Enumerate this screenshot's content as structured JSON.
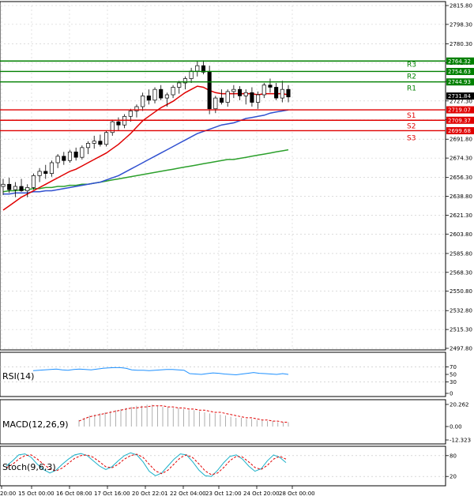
{
  "chart_data": {
    "type": "candlestick",
    "price_axis": {
      "ylim": [
        2497.8,
        2815.8
      ],
      "ticks": [
        "2815.80",
        "2798.30",
        "2780.30",
        "2762.80",
        "2745.30",
        "2727.30",
        "2709.80",
        "2691.80",
        "2674.30",
        "2656.30",
        "2638.80",
        "2621.30",
        "2603.80",
        "2585.80",
        "2568.30",
        "2550.80",
        "2532.80",
        "2515.30",
        "2497.80"
      ]
    },
    "x_labels": [
      "20:00",
      "15 Oct 00:00",
      "16 Oct 08:00",
      "17 Oct 16:00",
      "20 Oct 22:01",
      "22 Oct 04:00",
      "23 Oct 12:00",
      "24 Oct 20:00",
      "28 Oct 00:00"
    ],
    "pivot_levels": [
      {
        "name": "R3",
        "value": "2764.32",
        "color": "#008000"
      },
      {
        "name": "R2",
        "value": "2754.63",
        "color": "#008000"
      },
      {
        "name": "R1",
        "value": "2744.93",
        "color": "#008000"
      },
      {
        "name": "S1",
        "value": "2719.07",
        "color": "#e00000"
      },
      {
        "name": "S2",
        "value": "2709.37",
        "color": "#e00000"
      },
      {
        "name": "S3",
        "value": "2699.68",
        "color": "#e00000"
      }
    ],
    "current_price": "2731.84",
    "candles": [
      [
        2648,
        2655,
        2640,
        2650
      ],
      [
        2650,
        2656,
        2642,
        2645
      ],
      [
        2645,
        2652,
        2638,
        2648
      ],
      [
        2648,
        2655,
        2643,
        2644
      ],
      [
        2644,
        2650,
        2638,
        2647
      ],
      [
        2647,
        2660,
        2645,
        2658
      ],
      [
        2658,
        2665,
        2652,
        2662
      ],
      [
        2662,
        2668,
        2655,
        2660
      ],
      [
        2660,
        2672,
        2657,
        2670
      ],
      [
        2670,
        2678,
        2665,
        2676
      ],
      [
        2676,
        2680,
        2668,
        2672
      ],
      [
        2672,
        2682,
        2670,
        2680
      ],
      [
        2680,
        2684,
        2672,
        2675
      ],
      [
        2675,
        2686,
        2673,
        2684
      ],
      [
        2684,
        2690,
        2678,
        2688
      ],
      [
        2688,
        2695,
        2683,
        2690
      ],
      [
        2690,
        2696,
        2685,
        2687
      ],
      [
        2687,
        2700,
        2685,
        2698
      ],
      [
        2698,
        2710,
        2695,
        2708
      ],
      [
        2708,
        2712,
        2700,
        2705
      ],
      [
        2705,
        2715,
        2702,
        2713
      ],
      [
        2713,
        2720,
        2708,
        2718
      ],
      [
        2718,
        2724,
        2712,
        2722
      ],
      [
        2722,
        2735,
        2718,
        2732
      ],
      [
        2732,
        2738,
        2724,
        2728
      ],
      [
        2728,
        2740,
        2725,
        2738
      ],
      [
        2738,
        2742,
        2728,
        2730
      ],
      [
        2730,
        2735,
        2722,
        2733
      ],
      [
        2733,
        2742,
        2730,
        2740
      ],
      [
        2740,
        2746,
        2734,
        2744
      ],
      [
        2744,
        2750,
        2738,
        2748
      ],
      [
        2748,
        2758,
        2744,
        2755
      ],
      [
        2755,
        2764,
        2750,
        2760
      ],
      [
        2760,
        2765,
        2752,
        2754
      ],
      [
        2754,
        2760,
        2715,
        2720
      ],
      [
        2720,
        2732,
        2716,
        2730
      ],
      [
        2730,
        2738,
        2724,
        2726
      ],
      [
        2726,
        2738,
        2722,
        2736
      ],
      [
        2736,
        2742,
        2730,
        2738
      ],
      [
        2738,
        2741,
        2728,
        2732
      ],
      [
        2732,
        2738,
        2724,
        2735
      ],
      [
        2735,
        2740,
        2722,
        2726
      ],
      [
        2726,
        2736,
        2720,
        2733
      ],
      [
        2733,
        2744,
        2730,
        2742
      ],
      [
        2742,
        2748,
        2735,
        2740
      ],
      [
        2740,
        2744,
        2728,
        2730
      ],
      [
        2730,
        2746,
        2726,
        2738
      ],
      [
        2738,
        2742,
        2726,
        2731
      ]
    ],
    "ma_fast": [
      2626,
      2630,
      2634,
      2638,
      2641,
      2644,
      2647,
      2650,
      2653,
      2656,
      2659,
      2662,
      2664,
      2667,
      2670,
      2673,
      2676,
      2679,
      2683,
      2687,
      2692,
      2697,
      2703,
      2709,
      2713,
      2717,
      2721,
      2724,
      2727,
      2731,
      2735,
      2738,
      2741,
      2740,
      2737,
      2735,
      2734,
      2734,
      2734,
      2734,
      2734,
      2734,
      2733,
      2734,
      2734,
      2734,
      2734,
      2733
    ],
    "ma_mid": [
      2641,
      2641,
      2642,
      2642,
      2642,
      2643,
      2643,
      2644,
      2644,
      2645,
      2646,
      2647,
      2648,
      2649,
      2650,
      2651,
      2652,
      2654,
      2656,
      2658,
      2661,
      2664,
      2667,
      2670,
      2673,
      2676,
      2679,
      2682,
      2685,
      2688,
      2691,
      2694,
      2697,
      2699,
      2701,
      2703,
      2705,
      2706,
      2707,
      2709,
      2711,
      2712,
      2713,
      2714,
      2716,
      2717,
      2718,
      2719
    ],
    "ma_slow": [
      2643,
      2644,
      2644,
      2645,
      2645,
      2646,
      2646,
      2647,
      2647,
      2648,
      2648,
      2649,
      2649,
      2650,
      2650,
      2651,
      2652,
      2653,
      2654,
      2655,
      2656,
      2657,
      2658,
      2659,
      2660,
      2661,
      2662,
      2663,
      2664,
      2665,
      2666,
      2667,
      2668,
      2669,
      2670,
      2671,
      2672,
      2673,
      2673,
      2674,
      2675,
      2676,
      2677,
      2678,
      2679,
      2680,
      2681,
      2682
    ],
    "indicators": {
      "rsi": {
        "label": "RSI(14)",
        "ticks": [
          "70",
          "50",
          "30",
          "0"
        ],
        "ylim": [
          0,
          100
        ],
        "values": [
          60,
          61,
          62,
          63,
          64,
          62,
          61,
          63,
          64,
          63,
          62,
          64,
          66,
          67,
          68,
          68,
          66,
          62,
          61,
          61,
          60,
          61,
          62,
          63,
          63,
          62,
          61,
          52,
          51,
          50,
          52,
          54,
          53,
          51,
          50,
          49,
          51,
          53,
          55,
          53,
          52,
          51,
          50,
          52,
          50
        ]
      },
      "macd": {
        "label": "MACD(12,26,9)",
        "ticks": [
          "20.262",
          "0.00",
          "-12.323"
        ],
        "ylim": [
          -12.323,
          20.262
        ],
        "hist": [
          6,
          8,
          10,
          11,
          12,
          13,
          14,
          15,
          16,
          17,
          18,
          19,
          19,
          20,
          20,
          19,
          18,
          18,
          17,
          17,
          16,
          15,
          15,
          14,
          13,
          12,
          12,
          11,
          10,
          9,
          8,
          8,
          7,
          7,
          6,
          6,
          5,
          5,
          4,
          4,
          4
        ],
        "signal": [
          5,
          7,
          9,
          10,
          11,
          12,
          13,
          14,
          15,
          16,
          17,
          17,
          18,
          18,
          19,
          19,
          19,
          18,
          18,
          17,
          17,
          16,
          16,
          15,
          15,
          14,
          13,
          13,
          12,
          11,
          10,
          9,
          8,
          8,
          7,
          6,
          6,
          5,
          5,
          4,
          4
        ]
      },
      "stoch": {
        "label": "Stoch(9,6,3)",
        "ticks": [
          "80",
          "20"
        ],
        "ylim": [
          0,
          100
        ],
        "main": [
          50,
          65,
          82,
          85,
          75,
          55,
          40,
          30,
          38,
          55,
          70,
          82,
          86,
          80,
          65,
          50,
          40,
          48,
          65,
          80,
          88,
          82,
          62,
          35,
          22,
          30,
          50,
          70,
          85,
          82,
          62,
          38,
          22,
          20,
          38,
          60,
          78,
          82,
          70,
          50,
          35,
          42,
          65,
          82,
          75,
          60
        ],
        "signal": [
          45,
          55,
          70,
          80,
          82,
          70,
          55,
          42,
          36,
          44,
          58,
          72,
          80,
          82,
          75,
          62,
          48,
          45,
          55,
          70,
          80,
          84,
          75,
          55,
          36,
          28,
          38,
          56,
          74,
          82,
          74,
          56,
          36,
          25,
          30,
          46,
          66,
          78,
          76,
          62,
          46,
          40,
          52,
          70,
          78,
          70
        ]
      }
    }
  }
}
